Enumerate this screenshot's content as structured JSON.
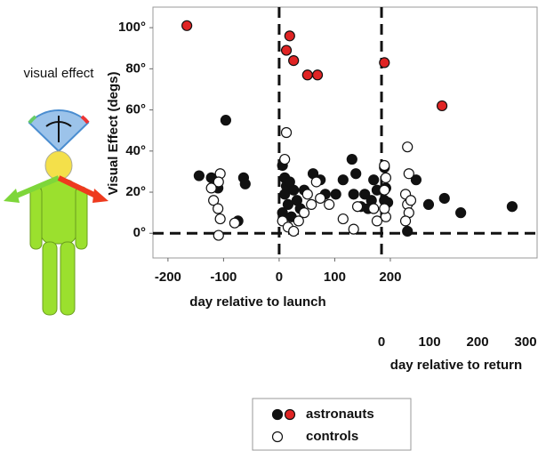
{
  "chart_data": {
    "type": "scatter",
    "ylabel": "Visual Effect (degs)",
    "ylim": [
      -12,
      110
    ],
    "yticks": [
      {
        "value": 0,
        "label": "0°"
      },
      {
        "value": 20,
        "label": "20°"
      },
      {
        "value": 40,
        "label": "40°"
      },
      {
        "value": 60,
        "label": "60°"
      },
      {
        "value": 80,
        "label": "80°"
      },
      {
        "value": 100,
        "label": "100°"
      }
    ],
    "x_axes": {
      "launch": {
        "label": "day relative to launch",
        "xlim": [
          -227,
          464
        ],
        "xticks": [
          -200,
          -100,
          0,
          100,
          200
        ]
      },
      "return": {
        "label": "day relative to return",
        "xlim": [
          -476,
          324
        ],
        "xticks": [
          0,
          100,
          200,
          300
        ]
      }
    },
    "figure_label": "visual effect",
    "legend": [
      {
        "label": "astronauts",
        "colors": [
          "#111111",
          "#e02424"
        ],
        "filled": true
      },
      {
        "label": "controls",
        "colors": [
          "#ffffff"
        ],
        "filled": false
      }
    ],
    "series": [
      {
        "legend": 0,
        "color": "#111111",
        "filled": true,
        "x_axis": "launch",
        "x": [
          -144,
          -122,
          -96,
          -110,
          -74,
          -64,
          -61,
          6,
          10,
          13,
          10,
          16,
          19,
          26,
          6,
          32,
          38,
          45,
          22,
          61,
          83,
          74,
          102,
          115,
          131,
          138,
          134,
          147,
          154,
          160,
          166,
          170,
          176
        ],
        "values": [
          28,
          27,
          55,
          22,
          6,
          27,
          24,
          33,
          27,
          23,
          19,
          14,
          25,
          21,
          10,
          16,
          12,
          21,
          8,
          29,
          19,
          26,
          19,
          26,
          36,
          29,
          19,
          13,
          19,
          12,
          16,
          26,
          21
        ]
      },
      {
        "legend": 0,
        "color": "#111111",
        "filled": true,
        "x_axis": "return",
        "x": [
          9,
          13,
          54,
          72,
          98,
          131,
          165,
          272,
          6,
          6
        ],
        "values": [
          22,
          15,
          1,
          26,
          14,
          17,
          10,
          13,
          32,
          16
        ]
      },
      {
        "legend": 0,
        "color": "#e02424",
        "filled": true,
        "x_axis": "launch",
        "x": [
          -166,
          13,
          19,
          26,
          51,
          69
        ],
        "values": [
          101,
          89,
          96,
          84,
          77,
          77
        ]
      },
      {
        "legend": 0,
        "color": "#e02424",
        "filled": true,
        "x_axis": "return",
        "x": [
          6,
          126
        ],
        "values": [
          83,
          62
        ]
      },
      {
        "legend": 1,
        "color": "#ffffff",
        "filled": false,
        "x_axis": "launch",
        "x": [
          -106,
          -109,
          -122,
          -118,
          -110,
          -106,
          -109,
          -80,
          13,
          10,
          6,
          16,
          26,
          35,
          45,
          58,
          67,
          74,
          51,
          90,
          115,
          134,
          141,
          170,
          176
        ],
        "values": [
          29,
          25,
          22,
          16,
          12,
          7,
          -1,
          5,
          49,
          36,
          6,
          3,
          1,
          6,
          10,
          14,
          25,
          17,
          19,
          14,
          7,
          2,
          13,
          12,
          6
        ]
      },
      {
        "legend": 1,
        "color": "#ffffff",
        "filled": false,
        "x_axis": "return",
        "x": [
          6,
          9,
          6,
          9,
          6,
          54,
          57,
          50,
          54,
          57,
          50,
          61
        ],
        "values": [
          33,
          27,
          21,
          8,
          12,
          42,
          29,
          19,
          14,
          10,
          6,
          16
        ]
      }
    ]
  }
}
